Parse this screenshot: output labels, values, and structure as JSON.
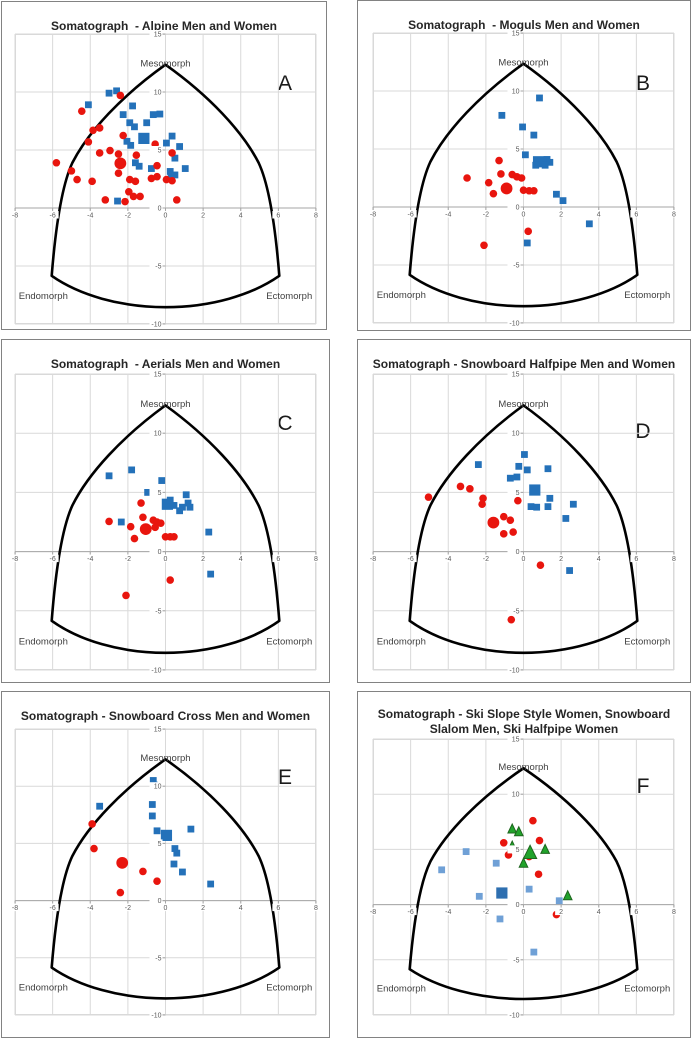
{
  "region_labels": {
    "top": "Mesomorph",
    "bottom_left": "Endomorph",
    "bottom_right": "Ectomorph"
  },
  "axes": {
    "xmin": -8,
    "xmax": 8,
    "ymin": -10,
    "ymax": 15,
    "xticks": [
      -8,
      -6,
      -4,
      -2,
      0,
      2,
      4,
      6,
      8
    ],
    "yticks": [
      15,
      10,
      5,
      0,
      -5,
      -10
    ]
  },
  "styles": {
    "grid_color": "#d9d9d9",
    "axis_color": "#a6a6a6",
    "tick_label_color": "#595959",
    "region_label_color": "#3f3f3f",
    "letter_color": "#1a1a1a",
    "outline_color": "#000000",
    "blue": "#2471b9",
    "red": "#e8150e",
    "light_blue": "#6fa0d6",
    "dark_blue": "#2e6fb0",
    "green": "#21a32b",
    "green_stroke": "#1e651e"
  },
  "point_format": "[x, y, size_scale(1=normal,2=large), color_override?]",
  "chart_data": [
    {
      "type": "scatter",
      "letter": "A",
      "title": "Somatograph  - Alpine Men and Women",
      "x_range": [
        -8,
        8
      ],
      "y_range": [
        -10,
        15
      ],
      "series": [
        {
          "name": "Alpine Men",
          "marker": "square",
          "color": "#2471b9",
          "points": [
            [
              -3.0,
              9.9
            ],
            [
              -2.6,
              10.1
            ],
            [
              -4.1,
              8.9
            ],
            [
              -1.75,
              8.8
            ],
            [
              -2.25,
              8.05
            ],
            [
              -1.9,
              7.35
            ],
            [
              -1.0,
              7.35
            ],
            [
              -0.65,
              8.05
            ],
            [
              -0.3,
              8.1
            ],
            [
              -1.65,
              7.0
            ],
            [
              -2.05,
              5.75
            ],
            [
              -1.15,
              6.0,
              2
            ],
            [
              -1.85,
              5.4
            ],
            [
              0.05,
              5.6
            ],
            [
              0.35,
              6.2
            ],
            [
              0.75,
              5.3
            ],
            [
              0.5,
              4.3
            ],
            [
              -1.6,
              3.9
            ],
            [
              -1.4,
              3.6
            ],
            [
              -0.75,
              3.4
            ],
            [
              0.25,
              3.15
            ],
            [
              0.5,
              2.85
            ],
            [
              1.05,
              3.4
            ],
            [
              0.3,
              2.6
            ],
            [
              -2.55,
              0.6
            ]
          ]
        },
        {
          "name": "Alpine Women",
          "marker": "circle",
          "color": "#e8150e",
          "points": [
            [
              -2.4,
              9.7
            ],
            [
              -4.45,
              8.35
            ],
            [
              -3.5,
              6.9
            ],
            [
              -3.85,
              6.7
            ],
            [
              -4.1,
              5.7
            ],
            [
              -2.25,
              6.25
            ],
            [
              -3.5,
              4.75
            ],
            [
              -2.95,
              4.95
            ],
            [
              -2.5,
              4.65
            ],
            [
              -1.55,
              4.55
            ],
            [
              -0.55,
              5.5
            ],
            [
              0.35,
              4.75
            ],
            [
              -5.8,
              3.9
            ],
            [
              -5.0,
              3.2
            ],
            [
              -4.7,
              2.45
            ],
            [
              -3.9,
              2.3
            ],
            [
              -2.4,
              3.85,
              2
            ],
            [
              -2.5,
              3.0
            ],
            [
              -1.9,
              2.45
            ],
            [
              -1.6,
              2.3
            ],
            [
              -0.45,
              3.65
            ],
            [
              -0.75,
              2.55
            ],
            [
              -0.45,
              2.7
            ],
            [
              0.05,
              2.45
            ],
            [
              0.35,
              2.35
            ],
            [
              -1.95,
              1.4
            ],
            [
              -1.7,
              1.0
            ],
            [
              -3.2,
              0.7
            ],
            [
              -2.15,
              0.55
            ],
            [
              -1.35,
              1.0
            ],
            [
              0.6,
              0.7
            ],
            [
              -0.45,
              0.0
            ]
          ]
        }
      ]
    },
    {
      "type": "scatter",
      "letter": "B",
      "title": "Somatograph  - Moguls Men and Women",
      "x_range": [
        -8,
        8
      ],
      "y_range": [
        -10,
        15
      ],
      "series": [
        {
          "name": "Moguls Men",
          "marker": "square",
          "color": "#2471b9",
          "points": [
            [
              0.85,
              9.4
            ],
            [
              -1.15,
              7.9
            ],
            [
              -0.05,
              6.9
            ],
            [
              0.55,
              6.2
            ],
            [
              0.1,
              4.5
            ],
            [
              0.8,
              3.9,
              2
            ],
            [
              0.65,
              3.6
            ],
            [
              1.25,
              4.1
            ],
            [
              1.4,
              3.85
            ],
            [
              1.15,
              3.6
            ],
            [
              1.75,
              1.1
            ],
            [
              2.1,
              0.55
            ],
            [
              3.5,
              -1.45
            ],
            [
              0.2,
              -3.1
            ]
          ]
        },
        {
          "name": "Moguls Women",
          "marker": "circle",
          "color": "#e8150e",
          "points": [
            [
              -1.3,
              4.0
            ],
            [
              -1.2,
              2.85
            ],
            [
              -3.0,
              2.5
            ],
            [
              -1.85,
              2.1
            ],
            [
              -0.6,
              2.8
            ],
            [
              -0.35,
              2.6
            ],
            [
              -0.1,
              2.5
            ],
            [
              -0.9,
              1.6,
              2
            ],
            [
              -1.6,
              1.15
            ],
            [
              0.0,
              1.45
            ],
            [
              0.3,
              1.4
            ],
            [
              0.55,
              1.4
            ],
            [
              0.25,
              -2.1
            ],
            [
              -2.1,
              -3.3
            ]
          ]
        }
      ]
    },
    {
      "type": "scatter",
      "letter": "C",
      "title": "Somatograph  - Aerials Men and Women",
      "x_range": [
        -8,
        8
      ],
      "y_range": [
        -10,
        15
      ],
      "series": [
        {
          "name": "Aerials Men",
          "marker": "square",
          "color": "#2471b9",
          "points": [
            [
              -3.0,
              6.4
            ],
            [
              -1.8,
              6.9
            ],
            [
              -0.2,
              6.0
            ],
            [
              -0.95,
              5.0
            ],
            [
              1.1,
              4.8
            ],
            [
              0.1,
              4.0,
              2
            ],
            [
              0.25,
              4.35
            ],
            [
              0.45,
              3.9
            ],
            [
              1.2,
              4.1
            ],
            [
              0.9,
              3.75
            ],
            [
              1.3,
              3.75
            ],
            [
              0.75,
              3.45
            ],
            [
              -2.35,
              2.5
            ],
            [
              2.3,
              1.65
            ],
            [
              2.4,
              -1.9
            ]
          ]
        },
        {
          "name": "Aerials Women",
          "marker": "circle",
          "color": "#e8150e",
          "points": [
            [
              -1.3,
              4.1
            ],
            [
              -3.0,
              2.55
            ],
            [
              -1.2,
              2.9
            ],
            [
              -1.85,
              2.1
            ],
            [
              -0.65,
              2.65
            ],
            [
              -0.45,
              2.5
            ],
            [
              -0.25,
              2.4
            ],
            [
              -1.05,
              1.9,
              2
            ],
            [
              -0.55,
              2.05
            ],
            [
              -1.65,
              1.1
            ],
            [
              0.0,
              1.25
            ],
            [
              0.25,
              1.25
            ],
            [
              0.45,
              1.25
            ],
            [
              0.25,
              -2.4
            ],
            [
              -2.1,
              -3.7
            ]
          ]
        }
      ]
    },
    {
      "type": "scatter",
      "letter": "D",
      "title": "Somatograph - Snowboard Halfpipe Men and Women",
      "x_range": [
        -8,
        8
      ],
      "y_range": [
        -10,
        15
      ],
      "series": [
        {
          "name": "Snowboard Halfpipe Men",
          "marker": "square",
          "color": "#2471b9",
          "points": [
            [
              0.05,
              8.2
            ],
            [
              -0.25,
              7.2
            ],
            [
              0.2,
              6.9
            ],
            [
              1.3,
              7.0
            ],
            [
              -2.4,
              7.35
            ],
            [
              -0.7,
              6.2
            ],
            [
              -0.35,
              6.3
            ],
            [
              0.6,
              5.2,
              2
            ],
            [
              1.4,
              4.5
            ],
            [
              0.4,
              3.8
            ],
            [
              0.7,
              3.75
            ],
            [
              1.3,
              3.8
            ],
            [
              2.65,
              4.0
            ],
            [
              2.25,
              2.8
            ],
            [
              2.45,
              -1.6
            ]
          ]
        },
        {
          "name": "Snowboard Halfpipe Women",
          "marker": "circle",
          "color": "#e8150e",
          "points": [
            [
              -3.35,
              5.5
            ],
            [
              -2.85,
              5.3
            ],
            [
              -5.05,
              4.6
            ],
            [
              -2.15,
              4.5
            ],
            [
              -2.2,
              4.0
            ],
            [
              -0.3,
              4.3
            ],
            [
              -1.05,
              2.95
            ],
            [
              -1.6,
              2.45,
              2
            ],
            [
              -0.7,
              2.65
            ],
            [
              -1.05,
              1.5
            ],
            [
              -0.55,
              1.65
            ],
            [
              0.9,
              -1.15
            ],
            [
              -0.65,
              -5.75
            ]
          ]
        }
      ]
    },
    {
      "type": "scatter",
      "letter": "E",
      "title": "Somatograph - Snowboard Cross Men and Women",
      "x_range": [
        -8,
        8
      ],
      "y_range": [
        -10,
        15
      ],
      "series": [
        {
          "name": "Snowboard Cross Men",
          "marker": "square",
          "color": "#2471b9",
          "points": [
            [
              -0.65,
              10.5
            ],
            [
              -0.6,
              10.1
            ],
            [
              -3.5,
              8.25
            ],
            [
              -0.7,
              8.4
            ],
            [
              -0.7,
              7.4
            ],
            [
              -0.45,
              6.1
            ],
            [
              0.05,
              5.7,
              2
            ],
            [
              1.35,
              6.25
            ],
            [
              0.5,
              4.55
            ],
            [
              0.6,
              4.15
            ],
            [
              0.45,
              3.2
            ],
            [
              0.9,
              2.5
            ],
            [
              2.4,
              1.45
            ]
          ]
        },
        {
          "name": "Snowboard Cross Women",
          "marker": "circle",
          "color": "#e8150e",
          "points": [
            [
              -3.9,
              6.7
            ],
            [
              -3.8,
              4.55
            ],
            [
              -2.3,
              3.3,
              2
            ],
            [
              -1.2,
              2.55
            ],
            [
              -0.45,
              1.7
            ],
            [
              -2.4,
              0.7
            ]
          ]
        }
      ]
    },
    {
      "type": "scatter",
      "letter": "F",
      "title": "Somatograph - Ski Slope Style Women, Snowboard Slalom Men, Ski Halfpipe Women",
      "x_range": [
        -8,
        8
      ],
      "y_range": [
        -10,
        15
      ],
      "series": [
        {
          "name": "Snowboard Slalom Men",
          "marker": "square",
          "color": "#6fa0d6",
          "points": [
            [
              -3.05,
              4.8
            ],
            [
              -1.45,
              3.75
            ],
            [
              -4.35,
              3.15
            ],
            [
              -2.35,
              0.75
            ],
            [
              -1.15,
              1.05,
              2,
              "#2e6fb0"
            ],
            [
              -0.5,
              0.0,
              1,
              "#2e6fb0"
            ],
            [
              0.3,
              1.4
            ],
            [
              1.9,
              0.35
            ],
            [
              -1.25,
              -1.3
            ],
            [
              0.55,
              -4.3
            ]
          ]
        },
        {
          "name": "Ski Slope Style Women",
          "marker": "circle",
          "color": "#e8150e",
          "points": [
            [
              0.5,
              7.6
            ],
            [
              -1.05,
              5.6
            ],
            [
              0.85,
              5.8
            ],
            [
              -0.8,
              4.5
            ],
            [
              0.3,
              4.35
            ],
            [
              0.8,
              2.75
            ],
            [
              1.75,
              -0.9
            ]
          ]
        },
        {
          "name": "Ski Halfpipe Women",
          "marker": "triangle",
          "color": "#21a32b",
          "stroke": "#1e651e",
          "points": [
            [
              -0.6,
              6.85
            ],
            [
              -0.25,
              6.6
            ],
            [
              -0.6,
              5.3
            ],
            [
              1.15,
              5.0
            ],
            [
              0.35,
              4.7,
              2
            ],
            [
              0.0,
              3.75
            ],
            [
              2.35,
              0.8
            ]
          ]
        }
      ]
    }
  ]
}
